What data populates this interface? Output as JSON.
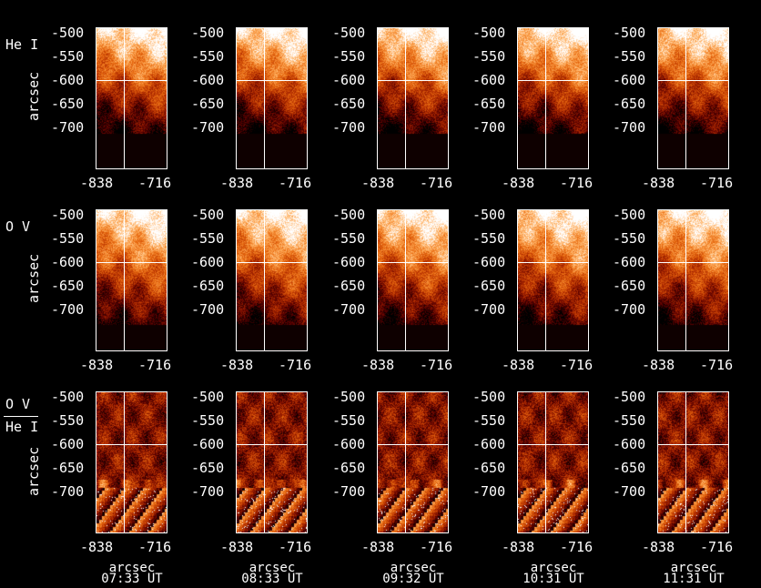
{
  "rows": [
    {
      "label": "He I",
      "ylabel": "arcsec"
    },
    {
      "label": "O V",
      "ylabel": "arcsec"
    },
    {
      "label_top": "O V",
      "label_bottom": "He I",
      "ylabel": "arcsec"
    }
  ],
  "y_ticks": [
    "-500",
    "-550",
    "-600",
    "-650",
    "-700"
  ],
  "x_ticks": [
    "-838",
    "-716"
  ],
  "x_axis_label": "arcsec",
  "times": [
    "07:33 UT",
    "08:33 UT",
    "09:32 UT",
    "10:31 UT",
    "11:31 UT"
  ],
  "colormap": [
    "#000000",
    "#5a0000",
    "#b02a00",
    "#e86a10",
    "#ffb060",
    "#ffffff"
  ]
}
